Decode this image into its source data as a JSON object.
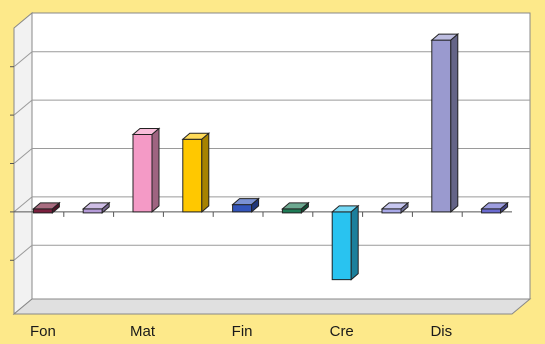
{
  "chart_data": {
    "type": "bar",
    "style": "3d-column",
    "categories": [
      "Fon",
      "",
      "Mat",
      "",
      "Fin",
      "",
      "Cre",
      "",
      "Dis",
      ""
    ],
    "x_tick_labels": [
      "Fon",
      "Mat",
      "Fin",
      "Cre",
      "Dis"
    ],
    "values": [
      0.1,
      0.1,
      3.2,
      3.0,
      0.3,
      0.1,
      -2.8,
      0.1,
      7.1,
      0.1
    ],
    "colors": [
      "#7A1F3D",
      "#B59BD8",
      "#F49AC6",
      "#FFC800",
      "#3355BB",
      "#1E7A55",
      "#29C3F0",
      "#A9A9E8",
      "#9A9ACF",
      "#6A6ACF"
    ],
    "ylim": [
      -3.6,
      7.6
    ],
    "gridlines": [
      -2,
      0,
      2,
      4,
      6
    ],
    "grid": true,
    "legend": false,
    "title": "",
    "xlabel": "",
    "ylabel": ""
  },
  "style": {
    "background": "#FDE98A",
    "wall_fill": "#FFFFFF",
    "floor_fill": "#E0E0E0",
    "gridline_color": "#9A9A9A"
  }
}
